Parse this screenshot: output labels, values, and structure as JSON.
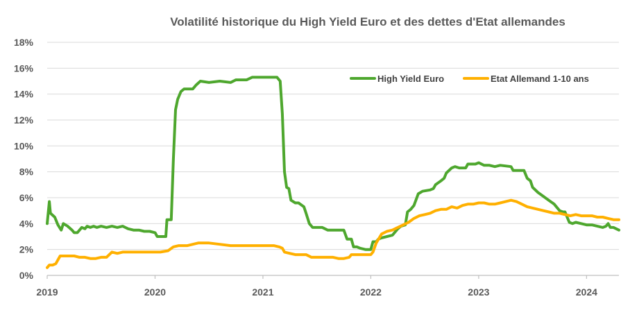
{
  "chart_data": {
    "type": "line",
    "title": "Volatilité historique du High Yield Euro et des dettes d'Etat allemandes",
    "xlabel": "",
    "ylabel": "",
    "x_ticks": [
      "2019",
      "2020",
      "2021",
      "2022",
      "2023",
      "2024"
    ],
    "y_ticks": [
      "0%",
      "2%",
      "4%",
      "6%",
      "8%",
      "10%",
      "12%",
      "14%",
      "16%",
      "18%"
    ],
    "xlim": [
      2019.0,
      2024.3
    ],
    "ylim": [
      0,
      18
    ],
    "grid": "horizontal",
    "legend_position": "top-right",
    "series": [
      {
        "name": "High Yield Euro",
        "color": "#4ea72e",
        "points": [
          [
            2019.0,
            4.0
          ],
          [
            2019.02,
            5.7
          ],
          [
            2019.03,
            4.8
          ],
          [
            2019.07,
            4.5
          ],
          [
            2019.1,
            3.9
          ],
          [
            2019.13,
            3.5
          ],
          [
            2019.15,
            4.0
          ],
          [
            2019.19,
            3.8
          ],
          [
            2019.23,
            3.5
          ],
          [
            2019.25,
            3.3
          ],
          [
            2019.28,
            3.3
          ],
          [
            2019.3,
            3.5
          ],
          [
            2019.32,
            3.7
          ],
          [
            2019.35,
            3.6
          ],
          [
            2019.37,
            3.8
          ],
          [
            2019.4,
            3.7
          ],
          [
            2019.43,
            3.8
          ],
          [
            2019.46,
            3.7
          ],
          [
            2019.5,
            3.8
          ],
          [
            2019.55,
            3.7
          ],
          [
            2019.6,
            3.8
          ],
          [
            2019.65,
            3.7
          ],
          [
            2019.7,
            3.8
          ],
          [
            2019.75,
            3.6
          ],
          [
            2019.8,
            3.5
          ],
          [
            2019.85,
            3.5
          ],
          [
            2019.9,
            3.4
          ],
          [
            2019.95,
            3.4
          ],
          [
            2020.0,
            3.3
          ],
          [
            2020.02,
            3.0
          ],
          [
            2020.05,
            3.0
          ],
          [
            2020.1,
            3.0
          ],
          [
            2020.11,
            4.3
          ],
          [
            2020.15,
            4.3
          ],
          [
            2020.17,
            9.0
          ],
          [
            2020.19,
            12.8
          ],
          [
            2020.21,
            13.6
          ],
          [
            2020.24,
            14.2
          ],
          [
            2020.27,
            14.4
          ],
          [
            2020.35,
            14.4
          ],
          [
            2020.38,
            14.7
          ],
          [
            2020.42,
            15.0
          ],
          [
            2020.5,
            14.9
          ],
          [
            2020.6,
            15.0
          ],
          [
            2020.7,
            14.9
          ],
          [
            2020.75,
            15.1
          ],
          [
            2020.85,
            15.1
          ],
          [
            2020.9,
            15.3
          ],
          [
            2021.0,
            15.3
          ],
          [
            2021.1,
            15.3
          ],
          [
            2021.13,
            15.3
          ],
          [
            2021.16,
            15.0
          ],
          [
            2021.18,
            12.5
          ],
          [
            2021.2,
            8.0
          ],
          [
            2021.22,
            6.8
          ],
          [
            2021.24,
            6.7
          ],
          [
            2021.26,
            5.8
          ],
          [
            2021.3,
            5.6
          ],
          [
            2021.33,
            5.6
          ],
          [
            2021.38,
            5.3
          ],
          [
            2021.4,
            4.8
          ],
          [
            2021.43,
            4.0
          ],
          [
            2021.46,
            3.7
          ],
          [
            2021.55,
            3.7
          ],
          [
            2021.6,
            3.5
          ],
          [
            2021.7,
            3.5
          ],
          [
            2021.75,
            3.5
          ],
          [
            2021.78,
            2.8
          ],
          [
            2021.82,
            2.8
          ],
          [
            2021.84,
            2.2
          ],
          [
            2021.87,
            2.2
          ],
          [
            2021.9,
            2.1
          ],
          [
            2021.95,
            2.0
          ],
          [
            2022.0,
            2.0
          ],
          [
            2022.02,
            2.6
          ],
          [
            2022.05,
            2.6
          ],
          [
            2022.07,
            2.8
          ],
          [
            2022.1,
            2.9
          ],
          [
            2022.15,
            3.0
          ],
          [
            2022.2,
            3.1
          ],
          [
            2022.25,
            3.6
          ],
          [
            2022.28,
            3.8
          ],
          [
            2022.32,
            3.9
          ],
          [
            2022.34,
            4.9
          ],
          [
            2022.37,
            5.1
          ],
          [
            2022.4,
            5.4
          ],
          [
            2022.44,
            6.3
          ],
          [
            2022.48,
            6.5
          ],
          [
            2022.55,
            6.6
          ],
          [
            2022.58,
            6.7
          ],
          [
            2022.6,
            7.0
          ],
          [
            2022.65,
            7.3
          ],
          [
            2022.68,
            7.5
          ],
          [
            2022.7,
            7.9
          ],
          [
            2022.75,
            8.3
          ],
          [
            2022.78,
            8.4
          ],
          [
            2022.82,
            8.3
          ],
          [
            2022.88,
            8.3
          ],
          [
            2022.9,
            8.6
          ],
          [
            2022.97,
            8.6
          ],
          [
            2023.0,
            8.7
          ],
          [
            2023.05,
            8.5
          ],
          [
            2023.1,
            8.5
          ],
          [
            2023.15,
            8.4
          ],
          [
            2023.2,
            8.5
          ],
          [
            2023.3,
            8.4
          ],
          [
            2023.32,
            8.1
          ],
          [
            2023.42,
            8.1
          ],
          [
            2023.45,
            7.5
          ],
          [
            2023.48,
            7.3
          ],
          [
            2023.5,
            6.8
          ],
          [
            2023.55,
            6.4
          ],
          [
            2023.6,
            6.1
          ],
          [
            2023.65,
            5.8
          ],
          [
            2023.7,
            5.5
          ],
          [
            2023.75,
            5.0
          ],
          [
            2023.78,
            4.9
          ],
          [
            2023.8,
            4.9
          ],
          [
            2023.82,
            4.5
          ],
          [
            2023.84,
            4.1
          ],
          [
            2023.87,
            4.0
          ],
          [
            2023.9,
            4.1
          ],
          [
            2023.95,
            4.0
          ],
          [
            2024.0,
            3.9
          ],
          [
            2024.05,
            3.9
          ],
          [
            2024.1,
            3.8
          ],
          [
            2024.15,
            3.7
          ],
          [
            2024.18,
            3.8
          ],
          [
            2024.2,
            4.0
          ],
          [
            2024.22,
            3.7
          ],
          [
            2024.25,
            3.7
          ],
          [
            2024.3,
            3.5
          ]
        ]
      },
      {
        "name": "Etat Allemand 1-10 ans",
        "color": "#ffb000",
        "points": [
          [
            2019.0,
            0.6
          ],
          [
            2019.02,
            0.8
          ],
          [
            2019.05,
            0.8
          ],
          [
            2019.08,
            0.9
          ],
          [
            2019.1,
            1.2
          ],
          [
            2019.12,
            1.5
          ],
          [
            2019.15,
            1.5
          ],
          [
            2019.2,
            1.5
          ],
          [
            2019.25,
            1.5
          ],
          [
            2019.3,
            1.4
          ],
          [
            2019.35,
            1.4
          ],
          [
            2019.4,
            1.3
          ],
          [
            2019.45,
            1.3
          ],
          [
            2019.5,
            1.4
          ],
          [
            2019.55,
            1.4
          ],
          [
            2019.6,
            1.8
          ],
          [
            2019.65,
            1.7
          ],
          [
            2019.7,
            1.8
          ],
          [
            2019.8,
            1.8
          ],
          [
            2019.9,
            1.8
          ],
          [
            2020.0,
            1.8
          ],
          [
            2020.05,
            1.8
          ],
          [
            2020.12,
            1.9
          ],
          [
            2020.17,
            2.2
          ],
          [
            2020.22,
            2.3
          ],
          [
            2020.3,
            2.3
          ],
          [
            2020.35,
            2.4
          ],
          [
            2020.4,
            2.5
          ],
          [
            2020.5,
            2.5
          ],
          [
            2020.6,
            2.4
          ],
          [
            2020.7,
            2.3
          ],
          [
            2020.8,
            2.3
          ],
          [
            2020.9,
            2.3
          ],
          [
            2021.0,
            2.3
          ],
          [
            2021.1,
            2.3
          ],
          [
            2021.15,
            2.2
          ],
          [
            2021.18,
            2.1
          ],
          [
            2021.2,
            1.8
          ],
          [
            2021.25,
            1.7
          ],
          [
            2021.3,
            1.6
          ],
          [
            2021.4,
            1.6
          ],
          [
            2021.45,
            1.4
          ],
          [
            2021.55,
            1.4
          ],
          [
            2021.6,
            1.4
          ],
          [
            2021.65,
            1.4
          ],
          [
            2021.7,
            1.3
          ],
          [
            2021.75,
            1.3
          ],
          [
            2021.8,
            1.4
          ],
          [
            2021.82,
            1.6
          ],
          [
            2021.9,
            1.6
          ],
          [
            2021.95,
            1.6
          ],
          [
            2022.0,
            1.6
          ],
          [
            2022.02,
            1.8
          ],
          [
            2022.05,
            2.5
          ],
          [
            2022.1,
            3.2
          ],
          [
            2022.15,
            3.4
          ],
          [
            2022.2,
            3.5
          ],
          [
            2022.25,
            3.7
          ],
          [
            2022.3,
            3.9
          ],
          [
            2022.35,
            4.1
          ],
          [
            2022.4,
            4.4
          ],
          [
            2022.45,
            4.6
          ],
          [
            2022.5,
            4.7
          ],
          [
            2022.55,
            4.8
          ],
          [
            2022.6,
            5.0
          ],
          [
            2022.65,
            5.1
          ],
          [
            2022.7,
            5.1
          ],
          [
            2022.75,
            5.3
          ],
          [
            2022.8,
            5.2
          ],
          [
            2022.85,
            5.4
          ],
          [
            2022.9,
            5.5
          ],
          [
            2022.95,
            5.5
          ],
          [
            2023.0,
            5.6
          ],
          [
            2023.05,
            5.6
          ],
          [
            2023.1,
            5.5
          ],
          [
            2023.15,
            5.5
          ],
          [
            2023.2,
            5.6
          ],
          [
            2023.25,
            5.7
          ],
          [
            2023.3,
            5.8
          ],
          [
            2023.35,
            5.7
          ],
          [
            2023.4,
            5.5
          ],
          [
            2023.45,
            5.3
          ],
          [
            2023.5,
            5.2
          ],
          [
            2023.55,
            5.1
          ],
          [
            2023.6,
            5.0
          ],
          [
            2023.65,
            4.9
          ],
          [
            2023.7,
            4.8
          ],
          [
            2023.75,
            4.8
          ],
          [
            2023.8,
            4.7
          ],
          [
            2023.85,
            4.6
          ],
          [
            2023.9,
            4.7
          ],
          [
            2023.95,
            4.6
          ],
          [
            2024.0,
            4.6
          ],
          [
            2024.05,
            4.6
          ],
          [
            2024.1,
            4.5
          ],
          [
            2024.15,
            4.5
          ],
          [
            2024.2,
            4.4
          ],
          [
            2024.25,
            4.3
          ],
          [
            2024.3,
            4.3
          ]
        ]
      }
    ]
  }
}
